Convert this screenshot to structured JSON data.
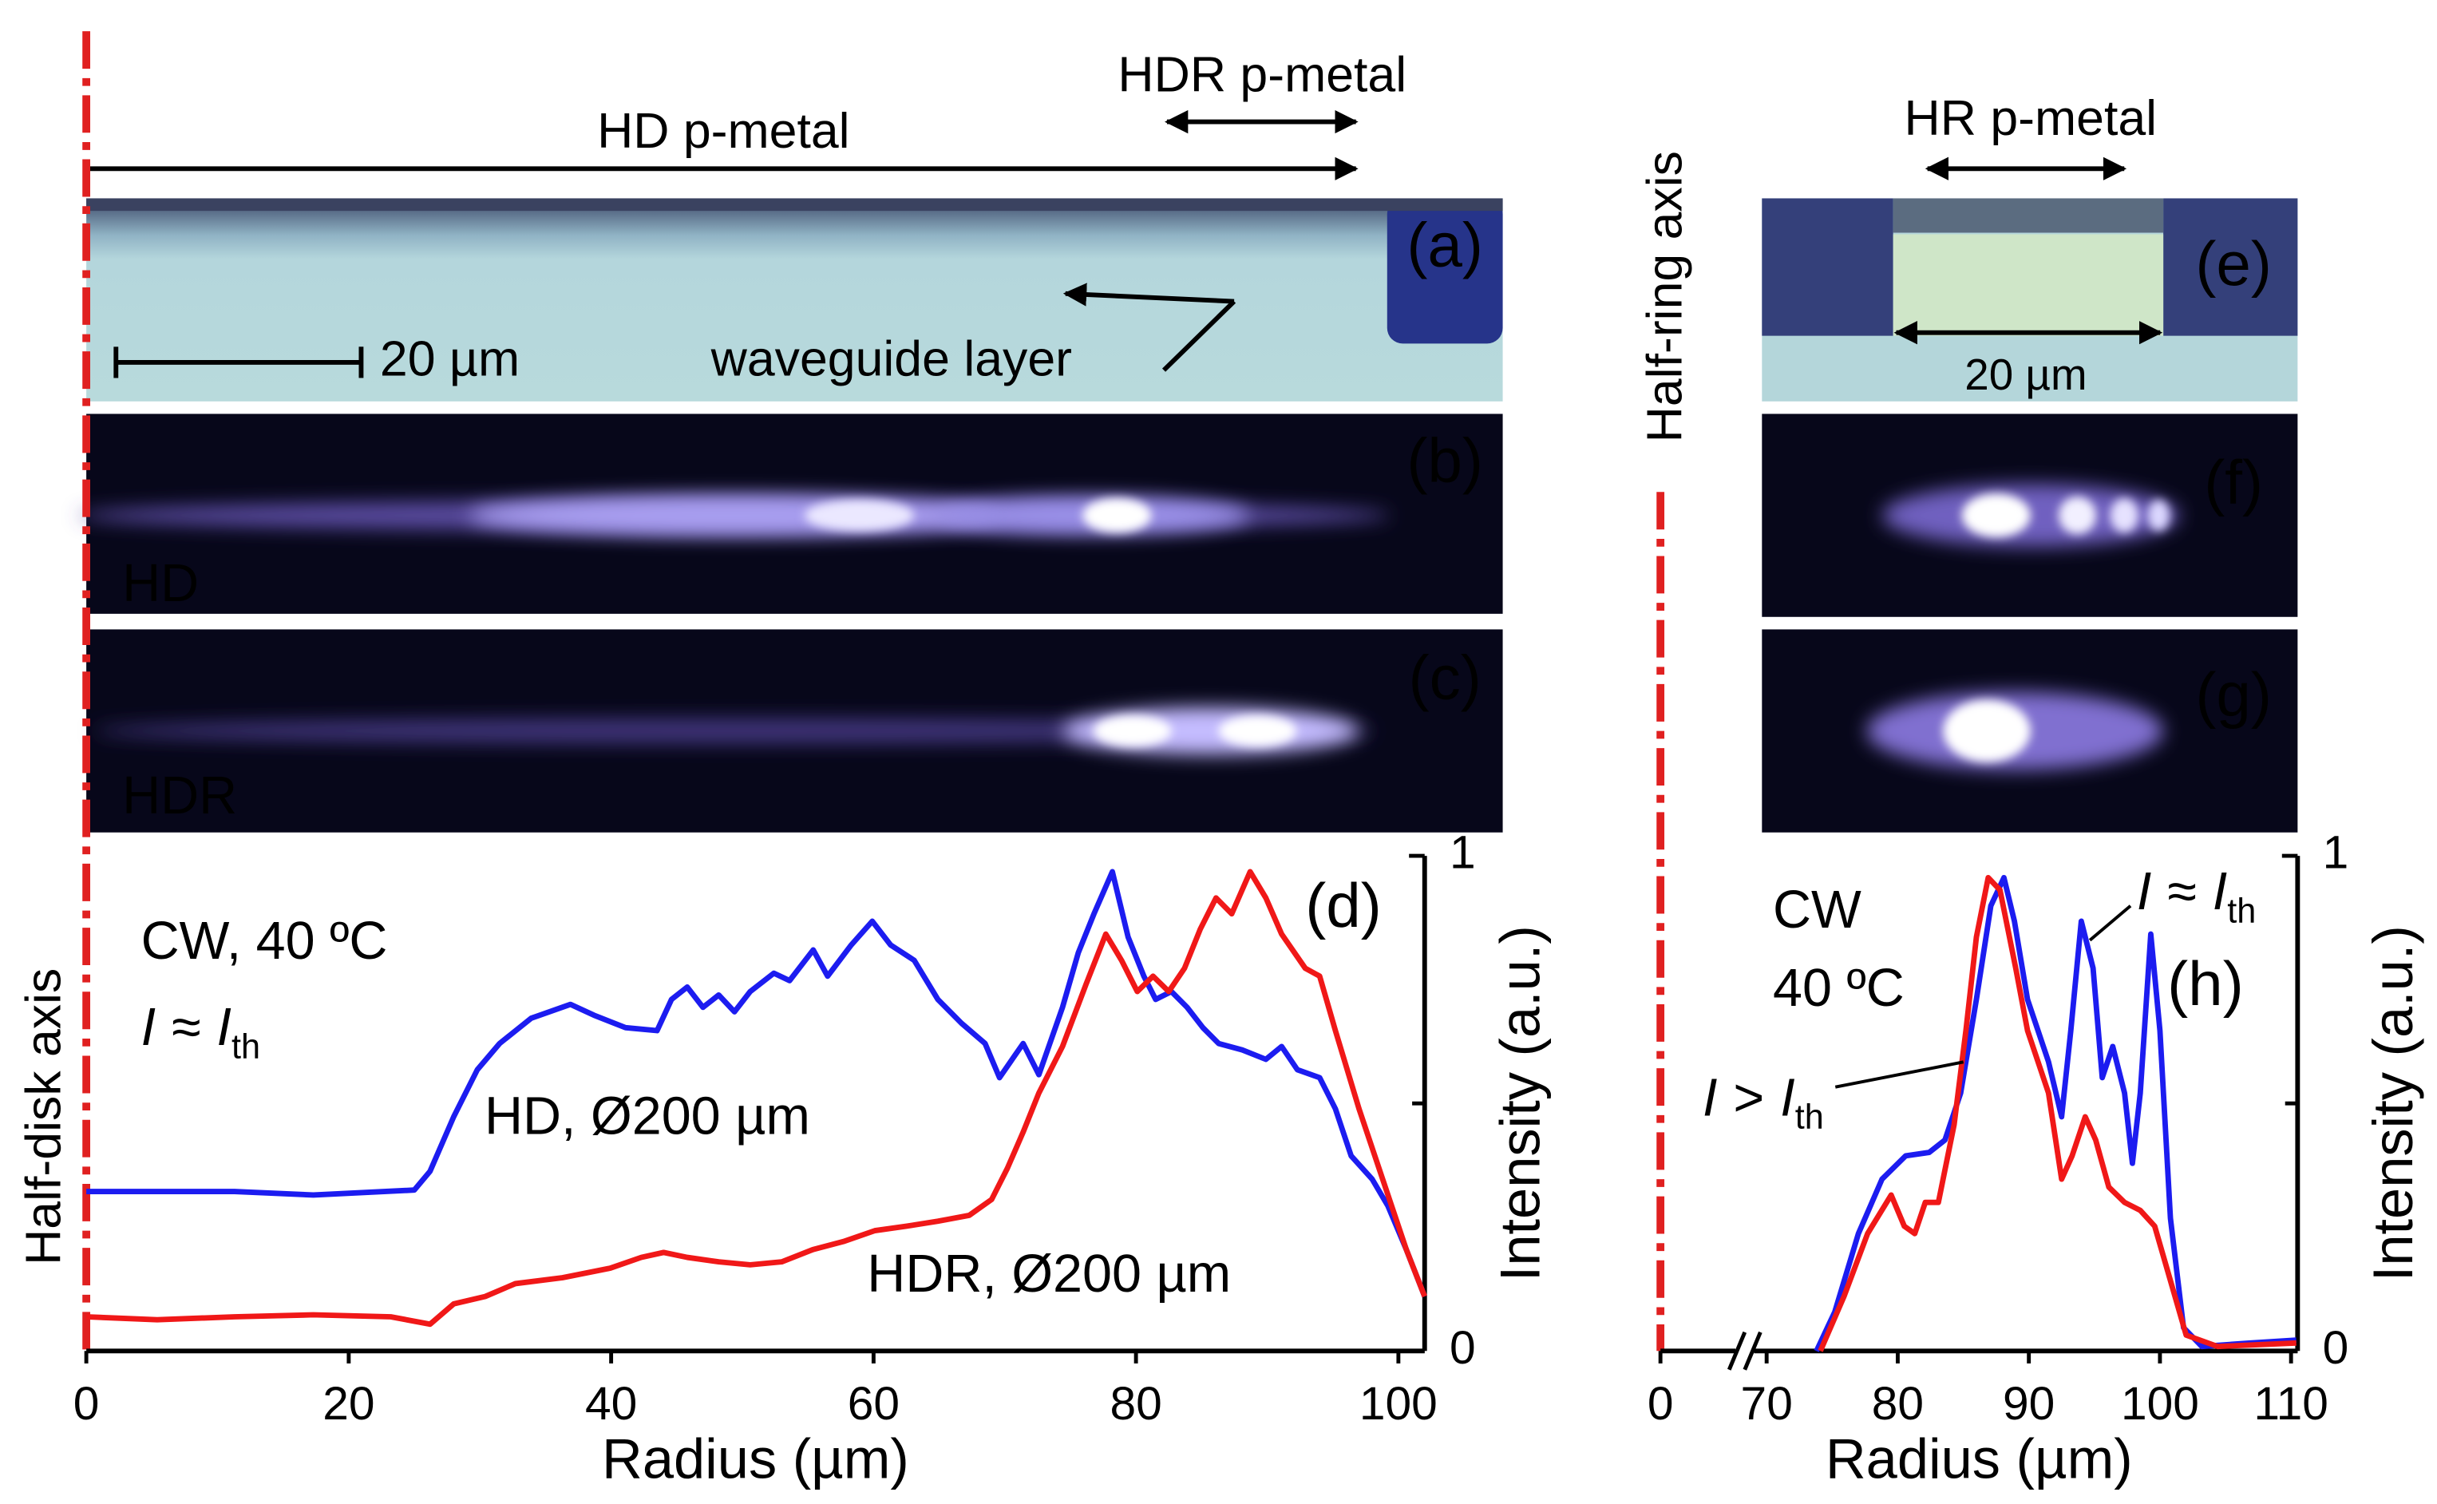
{
  "figure": {
    "labels": {
      "hd_pmetal": "HD p-metal",
      "hdr_pmetal": "HDR p-metal",
      "scale_a": "20 µm",
      "waveguide": "waveguide layer",
      "hd": "HD",
      "hdr": "HDR",
      "hr_pmetal": "HR p-metal",
      "scale_e": "20 µm"
    },
    "panels": {
      "a": "(a)",
      "b": "(b)",
      "c": "(c)",
      "e": "(e)",
      "f": "(f)",
      "g": "(g)"
    },
    "axes": {
      "half_disk": "Half-disk axis",
      "half_ring": "Half-ring axis"
    }
  },
  "chart_data": [
    {
      "type": "line",
      "panel": "(d)",
      "xlabel": "Radius (µm)",
      "ylabel": "Intensity (a.u.)",
      "xlim": [
        0,
        102
      ],
      "xticks": [
        0,
        20,
        40,
        60,
        80,
        100
      ],
      "ylim": [
        0,
        1
      ],
      "yticks": [
        0,
        1
      ],
      "minor_yticks": [
        0.5
      ],
      "y_axis_side": "right",
      "conditions": [
        "CW, 40 ºC"
      ],
      "current": {
        "a": "I",
        "op": "≈",
        "b": "I",
        "sub": "th"
      },
      "series": [
        {
          "name": "HD, Ø200 µm",
          "color": "#1c1cf0",
          "x": [
            0,
            11.3,
            17.3,
            25,
            26.2,
            28,
            29.8,
            31.5,
            33.9,
            36.9,
            38.7,
            41.1,
            43.5,
            44.6,
            45.8,
            47,
            48.2,
            49.4,
            50.6,
            52.4,
            53.6,
            55.4,
            56.5,
            58.3,
            59.9,
            61.3,
            63.1,
            64.9,
            66.7,
            68.5,
            69.6,
            71.4,
            72.6,
            74.4,
            75.6,
            76.8,
            78.2,
            79.4,
            80.6,
            81.5,
            82.7,
            83.9,
            85.1,
            86.3,
            88.1,
            89.9,
            91.1,
            92.3,
            94,
            95.2,
            96.4,
            98,
            99.2,
            100.6,
            102
          ],
          "values": [
            0.322,
            0.322,
            0.315,
            0.325,
            0.363,
            0.473,
            0.568,
            0.621,
            0.672,
            0.7,
            0.678,
            0.653,
            0.647,
            0.71,
            0.735,
            0.694,
            0.719,
            0.685,
            0.726,
            0.763,
            0.748,
            0.81,
            0.757,
            0.82,
            0.868,
            0.82,
            0.789,
            0.71,
            0.662,
            0.621,
            0.552,
            0.621,
            0.558,
            0.694,
            0.804,
            0.883,
            0.968,
            0.836,
            0.757,
            0.71,
            0.726,
            0.694,
            0.653,
            0.621,
            0.608,
            0.589,
            0.615,
            0.568,
            0.552,
            0.489,
            0.394,
            0.347,
            0.293,
            0.205,
            0.11
          ]
        },
        {
          "name": "HDR, Ø200 µm",
          "color": "#f01818",
          "x": [
            0,
            5.4,
            11.3,
            17.3,
            23.2,
            26.2,
            28,
            30.4,
            32.7,
            36.3,
            39.9,
            42.3,
            44,
            45.8,
            48.2,
            50.6,
            53,
            55.4,
            57.7,
            60.1,
            62.5,
            64.9,
            67.3,
            69,
            70.2,
            71.4,
            72.6,
            74.4,
            76.2,
            77.7,
            78.9,
            80.1,
            81.3,
            82.5,
            83.7,
            84.9,
            86.1,
            87.3,
            88.7,
            89.9,
            91.1,
            92.9,
            94,
            95.2,
            97,
            98.8,
            100.6,
            102
          ],
          "values": [
            0.069,
            0.063,
            0.069,
            0.073,
            0.069,
            0.054,
            0.095,
            0.11,
            0.136,
            0.148,
            0.167,
            0.189,
            0.199,
            0.189,
            0.18,
            0.174,
            0.18,
            0.205,
            0.221,
            0.243,
            0.252,
            0.262,
            0.274,
            0.306,
            0.369,
            0.442,
            0.521,
            0.615,
            0.741,
            0.842,
            0.789,
            0.726,
            0.757,
            0.726,
            0.773,
            0.852,
            0.915,
            0.883,
            0.968,
            0.915,
            0.842,
            0.773,
            0.757,
            0.647,
            0.489,
            0.347,
            0.205,
            0.11
          ]
        }
      ]
    },
    {
      "type": "line",
      "panel": "(h)",
      "xlabel": "Radius (µm)",
      "ylabel": "Intensity (a.u.)",
      "xlim": [
        0,
        110.5
      ],
      "axis_break": 70,
      "xticks": [
        0,
        70,
        80,
        90,
        100,
        110
      ],
      "ylim": [
        0,
        1
      ],
      "yticks": [
        0,
        1
      ],
      "minor_yticks": [
        0.5
      ],
      "y_axis_side": "right",
      "conditions": [
        "CW",
        "40 ºC"
      ],
      "annotations": [
        {
          "a": "I",
          "op": ">",
          "b": "I",
          "sub": "th"
        },
        {
          "a": "I",
          "op": "≈",
          "b": "I",
          "sub": "th"
        }
      ],
      "series": [
        {
          "color": "#1c1cf0",
          "x": [
            73.8,
            75.2,
            77,
            78.8,
            80.6,
            82.4,
            83.6,
            84.8,
            86,
            87.1,
            88.1,
            88.9,
            89.9,
            90.7,
            91.5,
            92.5,
            93.2,
            94,
            94.9,
            95.6,
            96.4,
            97.3,
            97.9,
            98.5,
            99.3,
            100,
            100.8,
            101.8,
            103.2,
            106.8,
            110.4
          ],
          "values": [
            0,
            0.079,
            0.237,
            0.347,
            0.394,
            0.401,
            0.426,
            0.521,
            0.71,
            0.899,
            0.956,
            0.868,
            0.71,
            0.647,
            0.584,
            0.473,
            0.647,
            0.868,
            0.773,
            0.552,
            0.615,
            0.521,
            0.379,
            0.521,
            0.842,
            0.647,
            0.268,
            0.047,
            0.009,
            0.016,
            0.022
          ]
        },
        {
          "color": "#f01818",
          "x": [
            74.1,
            75.9,
            77.7,
            79.5,
            80.5,
            81.3,
            82.1,
            83.1,
            84.3,
            85.2,
            86,
            86.9,
            87.8,
            89,
            89.9,
            90.7,
            91.5,
            92.5,
            93.3,
            94.3,
            95.1,
            96.1,
            97.3,
            98.5,
            99.6,
            100.8,
            102,
            104.4,
            110.4
          ],
          "values": [
            0,
            0.11,
            0.237,
            0.315,
            0.252,
            0.237,
            0.3,
            0.3,
            0.457,
            0.647,
            0.836,
            0.956,
            0.931,
            0.773,
            0.647,
            0.584,
            0.521,
            0.347,
            0.394,
            0.473,
            0.426,
            0.331,
            0.3,
            0.284,
            0.252,
            0.142,
            0.032,
            0.009,
            0.016
          ]
        }
      ]
    }
  ]
}
